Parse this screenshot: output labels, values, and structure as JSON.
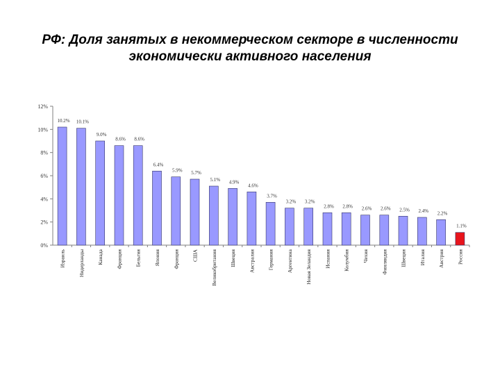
{
  "title": {
    "line1": "РФ: Доля занятых в некоммерческом секторе в численности",
    "line2": "экономически активного населения"
  },
  "chart_data": {
    "type": "bar",
    "title": "РФ: Доля занятых в некоммерческом секторе в численности экономически активного населения",
    "xlabel": "",
    "ylabel": "",
    "ylim": [
      0,
      12
    ],
    "yticks": [
      0,
      2,
      4,
      6,
      8,
      10,
      12
    ],
    "ytick_labels": [
      "0%",
      "2%",
      "4%",
      "6%",
      "8%",
      "10%",
      "12%"
    ],
    "grid": false,
    "legend": "none",
    "categories": [
      "Израиль",
      "Нидерланды",
      "Канада",
      "Франция",
      "Бельгия",
      "Япония",
      "Франция",
      "США",
      "Великобритания",
      "Швеция",
      "Австралия",
      "Германия",
      "Аргентина",
      "Новая Зеландия",
      "Испания",
      "Колумбия",
      "Чехия",
      "Финляндия",
      "Швеция",
      "Италия",
      "Австрия",
      "Россия"
    ],
    "values": [
      10.2,
      10.1,
      9.0,
      8.6,
      8.6,
      6.4,
      5.9,
      5.7,
      5.1,
      4.9,
      4.6,
      3.7,
      3.2,
      3.2,
      2.8,
      2.8,
      2.6,
      2.6,
      2.5,
      2.4,
      2.2,
      1.1
    ],
    "value_labels": [
      "10.2%",
      "10.1%",
      "9.0%",
      "8.6%",
      "8.6%",
      "6.4%",
      "5.9%",
      "5.7%",
      "5.1%",
      "4.9%",
      "4.6%",
      "3.7%",
      "3.2%",
      "3.2%",
      "2.8%",
      "2.8%",
      "2.6%",
      "2.6%",
      "2.5%",
      "2.4%",
      "2.2%",
      "1.1%"
    ],
    "colors": {
      "bar": "#9999ff",
      "highlight": "#e8141c",
      "highlight_category": "Россия",
      "axis": "#7f7f7f",
      "text": "#333333"
    }
  }
}
